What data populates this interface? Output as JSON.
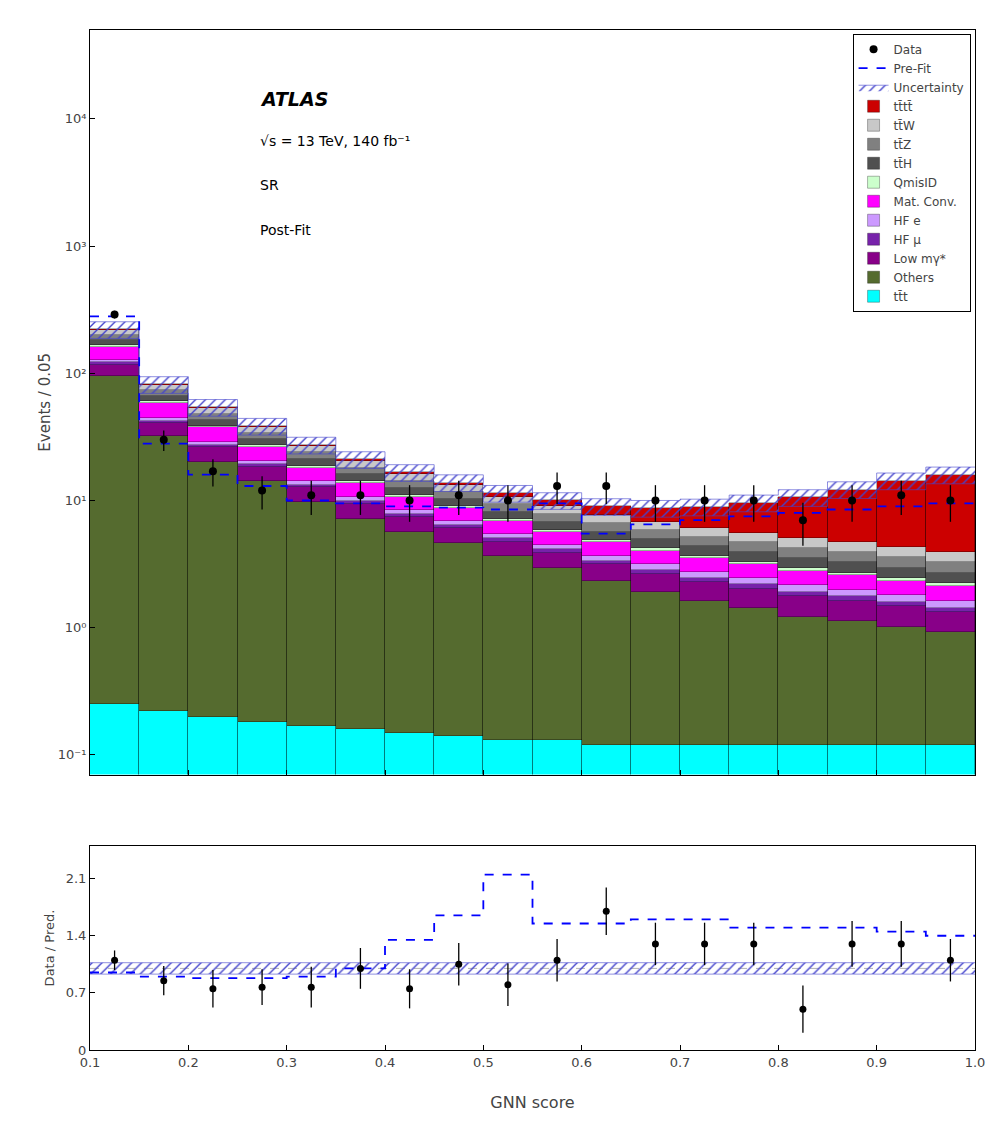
{
  "chart_data": [
    {
      "type": "histogram",
      "bins": [
        0.1,
        0.15,
        0.2,
        0.25,
        0.3,
        0.35,
        0.4,
        0.45,
        0.5,
        0.55,
        0.6,
        0.65,
        0.7,
        0.75,
        0.8,
        0.85,
        0.9,
        0.95,
        1.0
      ],
      "stacked": true,
      "log": "y",
      "ylabel": "Events / 0.05",
      "xlim": [
        0.1,
        1.0
      ],
      "ylim": [
        0.07,
        50000
      ],
      "xticks": [
        0.1,
        0.2,
        0.3,
        0.4,
        0.5,
        0.6,
        0.7,
        0.8,
        0.9,
        {
          "value": 1.0,
          "label": "1.0"
        }
      ],
      "yticks": [
        {
          "value": 0.1,
          "label": "10⁻¹"
        },
        {
          "value": 1,
          "label": "10⁰"
        },
        {
          "value": 10,
          "label": "10¹"
        },
        {
          "value": 100,
          "label": "10²"
        },
        {
          "value": 1000,
          "label": "10³"
        },
        {
          "value": 10000,
          "label": "10⁴"
        }
      ],
      "tick_labels": "y",
      "grid": false,
      "legend": "upper right",
      "annotations": [
        "ATLAS",
        "√s = 13 TeV, 140 fb⁻¹",
        "SR",
        "Post-Fit"
      ],
      "series": [
        {
          "name": "tt̄t",
          "type": "bar",
          "color": "#00ffff",
          "values": [
            0.25,
            0.22,
            0.2,
            0.18,
            0.17,
            0.16,
            0.15,
            0.14,
            0.13,
            0.13,
            0.12,
            0.12,
            0.12,
            0.12,
            0.12,
            0.12,
            0.12,
            0.12
          ]
        },
        {
          "name": "Others",
          "type": "bar",
          "color": "#556b2f",
          "values": [
            95,
            32,
            20,
            14,
            9.5,
            7.0,
            5.5,
            4.5,
            3.5,
            2.8,
            2.2,
            1.8,
            1.5,
            1.3,
            1.1,
            1.0,
            0.9,
            0.8
          ]
        },
        {
          "name": "Low mγ*",
          "type": "bar",
          "color": "#880088",
          "values": [
            22,
            8.5,
            6.0,
            4.2,
            3.0,
            2.3,
            1.8,
            1.4,
            1.1,
            0.95,
            0.82,
            0.72,
            0.65,
            0.6,
            0.55,
            0.5,
            0.45,
            0.4
          ]
        },
        {
          "name": "HF μ",
          "type": "bar",
          "color": "#7722aa",
          "values": [
            4.5,
            1.7,
            1.2,
            0.85,
            0.65,
            0.5,
            0.4,
            0.35,
            0.3,
            0.25,
            0.22,
            0.2,
            0.18,
            0.17,
            0.15,
            0.14,
            0.13,
            0.12
          ]
        },
        {
          "name": "HF e",
          "type": "bar",
          "color": "#cc99ff",
          "values": [
            5.5,
            2.2,
            1.6,
            1.1,
            0.85,
            0.68,
            0.55,
            0.48,
            0.42,
            0.36,
            0.32,
            0.3,
            0.28,
            0.26,
            0.24,
            0.22,
            0.2,
            0.19
          ]
        },
        {
          "name": "Mat. Conv.",
          "type": "bar",
          "color": "#ff00ff",
          "values": [
            35,
            14,
            8.5,
            6.0,
            4.0,
            3.0,
            2.2,
            1.8,
            1.4,
            1.2,
            1.0,
            0.9,
            0.8,
            0.7,
            0.65,
            0.6,
            0.55,
            0.5
          ]
        },
        {
          "name": "QmisID",
          "type": "bar",
          "color": "#ccffcc",
          "values": [
            4.5,
            1.8,
            1.2,
            0.85,
            0.6,
            0.48,
            0.38,
            0.32,
            0.26,
            0.22,
            0.2,
            0.18,
            0.16,
            0.15,
            0.14,
            0.13,
            0.12,
            0.11
          ]
        },
        {
          "name": "tt̄H",
          "type": "bar",
          "color": "#505050",
          "values": [
            16,
            6.0,
            4.5,
            3.2,
            2.4,
            1.9,
            1.5,
            1.2,
            1.0,
            0.9,
            0.8,
            0.75,
            0.7,
            0.65,
            0.6,
            0.55,
            0.5,
            0.45
          ]
        },
        {
          "name": "tt̄Z",
          "type": "bar",
          "color": "#808080",
          "values": [
            18,
            7.0,
            5.0,
            3.6,
            2.7,
            2.1,
            1.7,
            1.4,
            1.2,
            1.05,
            0.95,
            0.88,
            0.82,
            0.78,
            0.72,
            0.68,
            0.63,
            0.58
          ]
        },
        {
          "name": "tt̄W",
          "type": "bar",
          "color": "#c8c8c8",
          "values": [
            20,
            8.0,
            5.5,
            4.0,
            3.0,
            2.4,
            1.9,
            1.6,
            1.3,
            1.15,
            1.05,
            0.95,
            0.9,
            0.86,
            0.8,
            0.76,
            0.7,
            0.65
          ]
        },
        {
          "name": "tt̄tt̄",
          "type": "bar",
          "color": "#cc0000",
          "values": [
            0.35,
            0.35,
            0.4,
            0.45,
            0.45,
            0.5,
            0.55,
            0.65,
            0.8,
            1.0,
            1.3,
            1.9,
            2.8,
            4.0,
            5.5,
            7.5,
            10.0,
            12.0
          ]
        },
        {
          "name": "Uncertainty",
          "type": "band",
          "color": "#4444cc",
          "low": [
            187.935,
            69.5045,
            45.985,
            32.6655,
            23.222,
            17.867,
            14.1355,
            11.764,
            9.6985,
            8.5085,
            7.633,
            7.395,
            7.5735,
            8.1515,
            8.9845,
            10.37,
            12.155,
            13.532
          ],
          "high": [
            254.265,
            94.0355,
            62.215,
            44.1945,
            31.418,
            24.173,
            19.1245,
            15.916,
            13.1215,
            11.5115,
            10.327,
            10.005,
            10.2465,
            11.0285,
            12.1555,
            14.03,
            16.445,
            18.308
          ]
        },
        {
          "name": "Pre-Fit",
          "type": "step",
          "color": "#0000ff",
          "line_style": "dashed",
          "values": [
            280,
            28,
            16,
            13,
            10,
            9.5,
            9.0,
            8.8,
            8.5,
            9.5,
            5.5,
            6.5,
            7.0,
            7.5,
            8.0,
            8.5,
            9.0,
            9.5
          ]
        },
        {
          "name": "Data",
          "type": "scatter",
          "color": "#000000",
          "marker": "circle",
          "values": [
            290,
            30,
            17,
            12,
            11,
            11,
            10,
            11,
            10,
            13,
            13,
            10,
            10,
            10,
            7,
            10,
            11,
            10
          ],
          "error_low": [
            20,
            5.5,
            4.1,
            3.5,
            3.3,
            3.3,
            3.2,
            3.3,
            3.2,
            3.6,
            3.6,
            3.2,
            3.2,
            3.2,
            2.6,
            3.2,
            3.3,
            3.2
          ],
          "error_high": [
            20,
            5.5,
            4.1,
            3.5,
            3.3,
            3.3,
            3.2,
            3.3,
            3.2,
            3.6,
            3.6,
            3.2,
            3.2,
            3.2,
            2.6,
            3.2,
            3.3,
            3.2
          ]
        }
      ]
    },
    {
      "type": "histogram",
      "bins": [
        0.1,
        0.15,
        0.2,
        0.25,
        0.3,
        0.35,
        0.4,
        0.45,
        0.5,
        0.55,
        0.6,
        0.65,
        0.7,
        0.75,
        0.8,
        0.85,
        0.9,
        0.95,
        1.0
      ],
      "xlabel": "GNN score",
      "ylabel": "Data / Pred.",
      "xlim": [
        0.1,
        1.0
      ],
      "ylim": [
        0,
        2.5
      ],
      "xticks": [
        0.1,
        0.2,
        0.3,
        0.4,
        0.5,
        0.6,
        0.7,
        0.8,
        0.9,
        {
          "value": 1.0,
          "label": "1.0"
        }
      ],
      "yticks": [
        0,
        0.7,
        1.4,
        2.1
      ],
      "grid": false,
      "series": [
        {
          "type": "band",
          "color": "#4444cc",
          "low": [
            0.93,
            0.93,
            0.93,
            0.93,
            0.93,
            0.93,
            0.93,
            0.93,
            0.93,
            0.93,
            0.93,
            0.93,
            0.93,
            0.93,
            0.93,
            0.93,
            0.93,
            0.93
          ],
          "high": [
            1.07,
            1.07,
            1.07,
            1.07,
            1.07,
            1.07,
            1.07,
            1.07,
            1.07,
            1.07,
            1.07,
            1.07,
            1.07,
            1.07,
            1.07,
            1.07,
            1.07,
            1.07
          ]
        },
        {
          "type": "hline",
          "color": "#808080",
          "line_style": "dashed",
          "values": [
            1.0
          ]
        },
        {
          "type": "step",
          "color": "#0000ff",
          "line_style": "dashed",
          "values": [
            0.95,
            0.9,
            0.88,
            0.88,
            0.9,
            1.0,
            1.35,
            1.65,
            2.15,
            1.55,
            1.55,
            1.6,
            1.6,
            1.5,
            1.5,
            1.5,
            1.45,
            1.4
          ]
        },
        {
          "type": "scatter",
          "color": "#000000",
          "marker": "circle",
          "values": [
            1.1,
            0.85,
            0.75,
            0.77,
            0.77,
            1.0,
            0.75,
            1.05,
            0.8,
            1.1,
            1.7,
            1.3,
            1.3,
            1.3,
            0.5,
            1.3,
            1.3,
            1.1
          ],
          "error_low": [
            0.12,
            0.18,
            0.23,
            0.22,
            0.25,
            0.25,
            0.24,
            0.26,
            0.26,
            0.26,
            0.29,
            0.26,
            0.26,
            0.26,
            0.29,
            0.28,
            0.28,
            0.26
          ],
          "error_high": [
            0.12,
            0.18,
            0.23,
            0.22,
            0.25,
            0.25,
            0.24,
            0.26,
            0.26,
            0.26,
            0.29,
            0.26,
            0.26,
            0.26,
            0.29,
            0.28,
            0.28,
            0.26
          ]
        }
      ]
    }
  ]
}
